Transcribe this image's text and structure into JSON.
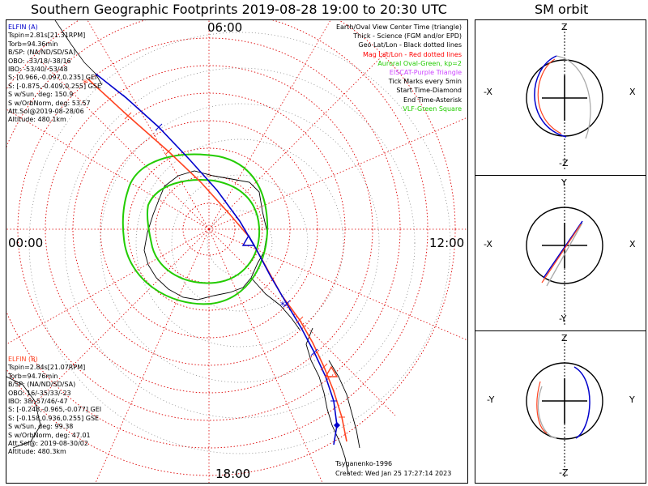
{
  "header": {
    "title": "Southern Geographic Footprints 2019-08-28 19:00 to 20:30 UTC",
    "orbit_title": "SM orbit"
  },
  "elfin_a": {
    "name": "ELFIN (A)",
    "lines": [
      "Tspin=2.81s[21.31RPM]",
      "Torb=94.36min",
      "B/SP: (NA/ND/SD/SA)",
      "OBO: -33/18/-38/16",
      "IBO: -53/40/-53/48",
      "S: [0.966,-0.097,0.235] GEI",
      "S: [-0.875,-0.409,0.255] GSE",
      "S w/Sun, deg: 150.9",
      "S w/OrbNorm, deg: 53.57",
      "Att.Sol@2019-08-28/06",
      "Altitude: 480.1km"
    ],
    "color": "#0000cc"
  },
  "elfin_b": {
    "name": "ELFIN (B)",
    "lines": [
      "Tspin=2.84s[21.07RPM]",
      "Torb=94.76min",
      "B/SP: (NA/ND/SD/SA)",
      "OBO: 16/-35/33/-23",
      "IBO: 38/-57/46/-47",
      "S: [-0.248,-0.965,-0.077] GEI",
      "S: [-0.158,0.936,0.255] GSE",
      "S w/Sun, deg: 99.38",
      "S w/OrbNorm, deg: 47.01",
      "Att.Sol@: 2019-08-30/02",
      "Altitude: 480.3km"
    ],
    "color": "#ff4422"
  },
  "legend": [
    {
      "text": "Earth/Oval View Center Time (triangle)",
      "color": "#000000"
    },
    {
      "text": "Thick - Science (FGM and/or EPD)",
      "color": "#000000"
    },
    {
      "text": "Geo Lat/Lon - Black dotted lines",
      "color": "#000000"
    },
    {
      "text": "Mag Lat/Lon - Red dotted lines",
      "color": "#ff0000"
    },
    {
      "text": "Auroral Oval-Green, kp=2",
      "color": "#22cc00"
    },
    {
      "text": "EISCAT-Purple Triangle",
      "color": "#cc44ff"
    },
    {
      "text": "Tick Marks every 5min",
      "color": "#000000"
    },
    {
      "text": "Start Time-Diamond",
      "color": "#000000"
    },
    {
      "text": "End Time-Asterisk",
      "color": "#000000"
    },
    {
      "text": "VLF-Green Square",
      "color": "#22cc00"
    }
  ],
  "clock_labels": {
    "top": "06:00",
    "left": "00:00",
    "right": "12:00",
    "bottom": "18:00"
  },
  "footer": {
    "credit": "Tsyganenko-1996",
    "created": "Created: Wed Jan 25 17:27:14 2023"
  },
  "orbit_panels": [
    {
      "top": "Z",
      "bottom": "-Z",
      "left": "-X",
      "right": "X"
    },
    {
      "top": "Y",
      "bottom": "-Y",
      "left": "-X",
      "right": "X"
    },
    {
      "top": "Z",
      "bottom": "-Z",
      "left": "-Y",
      "right": "Y"
    }
  ],
  "colors": {
    "elfin_a": "#0000cc",
    "elfin_b": "#ff4422",
    "oval": "#22cc00",
    "mag_grid": "#dd0000",
    "orbit_gray": "#aaaaaa"
  }
}
